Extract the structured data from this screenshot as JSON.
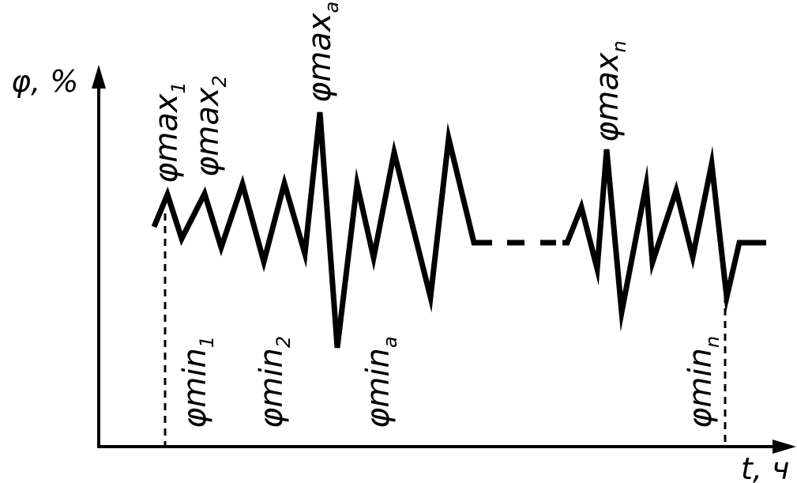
{
  "axes": {
    "y_label": "φ, %",
    "x_label": "t, ч"
  },
  "labels": {
    "phi_max_1": {
      "base": "φmax",
      "sub": "1"
    },
    "phi_max_2": {
      "base": "φmax",
      "sub": "2"
    },
    "phi_max_a": {
      "base": "φmax",
      "sub": "a"
    },
    "phi_max_n": {
      "base": "φmax",
      "sub": "n"
    },
    "phi_min_1": {
      "base": "φmin",
      "sub": "1"
    },
    "phi_min_2": {
      "base": "φmin",
      "sub": "2"
    },
    "phi_min_a": {
      "base": "φmin",
      "sub": "a"
    },
    "phi_min_n": {
      "base": "φmin",
      "sub": "n"
    }
  },
  "colors": {
    "ink": "#000000",
    "background": "#ffffff"
  }
}
